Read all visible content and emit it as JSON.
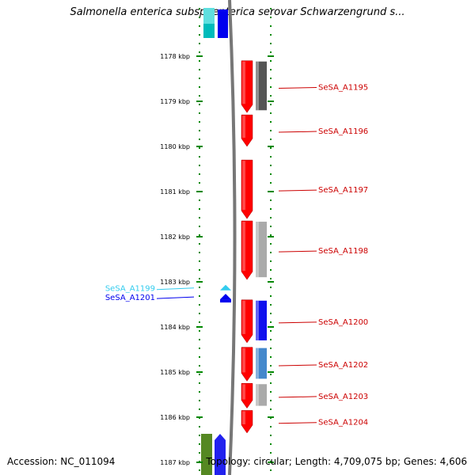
{
  "title": "Salmonella enterica subsp. enterica serovar Schwarzengrund s...",
  "ticks": [
    {
      "label": "1178 kbp",
      "kbp": 1178
    },
    {
      "label": "1179 kbp",
      "kbp": 1179
    },
    {
      "label": "1180 kbp",
      "kbp": 1180
    },
    {
      "label": "1181 kbp",
      "kbp": 1181
    },
    {
      "label": "1182 kbp",
      "kbp": 1182
    },
    {
      "label": "1183 kbp",
      "kbp": 1183
    },
    {
      "label": "1184 kbp",
      "kbp": 1184
    },
    {
      "label": "1185 kbp",
      "kbp": 1185
    },
    {
      "label": "1186 kbp",
      "kbp": 1186
    },
    {
      "label": "1187 kbp",
      "kbp": 1187
    }
  ],
  "genes_right": [
    {
      "label": "SeSA_A1195",
      "start_kbp": 1178.1,
      "end_kbp": 1179.25,
      "color": "#ff0000",
      "hit_color": "#555555"
    },
    {
      "label": "SeSA_A1196",
      "start_kbp": 1179.3,
      "end_kbp": 1180.0,
      "color": "#ff0000",
      "hit_color": ""
    },
    {
      "label": "SeSA_A1197",
      "start_kbp": 1180.3,
      "end_kbp": 1181.6,
      "color": "#ff0000",
      "hit_color": ""
    },
    {
      "label": "SeSA_A1198",
      "start_kbp": 1181.65,
      "end_kbp": 1182.95,
      "color": "#ff0000",
      "hit_color": "#aaaaaa"
    },
    {
      "label": "SeSA_A1200",
      "start_kbp": 1183.4,
      "end_kbp": 1184.35,
      "color": "#ff0000",
      "hit_color": "#1010ee"
    },
    {
      "label": "SeSA_A1202",
      "start_kbp": 1184.45,
      "end_kbp": 1185.2,
      "color": "#ff0000",
      "hit_color": "#4488cc"
    },
    {
      "label": "SeSA_A1203",
      "start_kbp": 1185.25,
      "end_kbp": 1185.8,
      "color": "#ff0000",
      "hit_color": "#aaaaaa"
    },
    {
      "label": "SeSA_A1204",
      "start_kbp": 1185.85,
      "end_kbp": 1186.35,
      "color": "#ff0000",
      "hit_color": ""
    }
  ],
  "genes_left": [
    {
      "label": "SeSA_A1199",
      "kbp": 1183.1,
      "color": "#33ccee"
    },
    {
      "label": "SeSA_A1201",
      "kbp": 1183.3,
      "color": "#0000ee"
    }
  ],
  "accession": "Accession: NC_011094",
  "summary": "Topology: circular; Length: 4,709,075 bp; Genes: 4,606"
}
